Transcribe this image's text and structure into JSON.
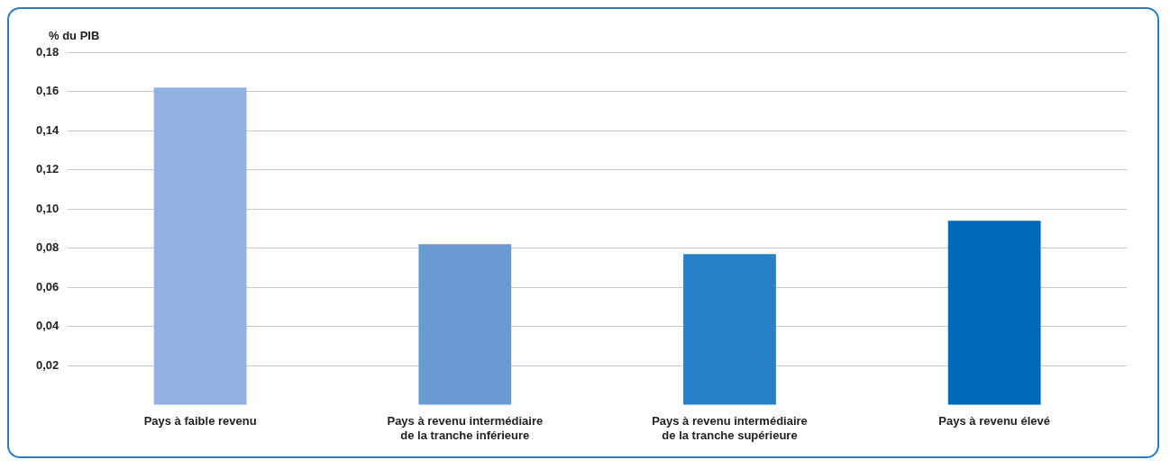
{
  "chart_data": {
    "type": "bar",
    "ylabel": "% du PIB",
    "categories": [
      "Pays à faible revenu",
      "Pays à revenu intermédiaire\nde la tranche inférieure",
      "Pays à revenu intermédiaire\nde la tranche supérieure",
      "Pays à revenu élevé"
    ],
    "values": [
      0.162,
      0.082,
      0.077,
      0.094
    ],
    "colors": [
      "#92b1e0",
      "#6a9ad2",
      "#2a80c4",
      "#0068b8"
    ],
    "ylim": [
      0,
      0.18
    ],
    "yticks": [
      {
        "value": 0.02,
        "label": "0,02"
      },
      {
        "value": 0.04,
        "label": "0,04"
      },
      {
        "value": 0.06,
        "label": "0,06"
      },
      {
        "value": 0.08,
        "label": "0,08"
      },
      {
        "value": 0.1,
        "label": "0,10"
      },
      {
        "value": 0.12,
        "label": "0,12"
      },
      {
        "value": 0.14,
        "label": "0,14"
      },
      {
        "value": 0.16,
        "label": "0,16"
      },
      {
        "value": 0.18,
        "label": "0,18"
      }
    ],
    "grid": "y"
  }
}
